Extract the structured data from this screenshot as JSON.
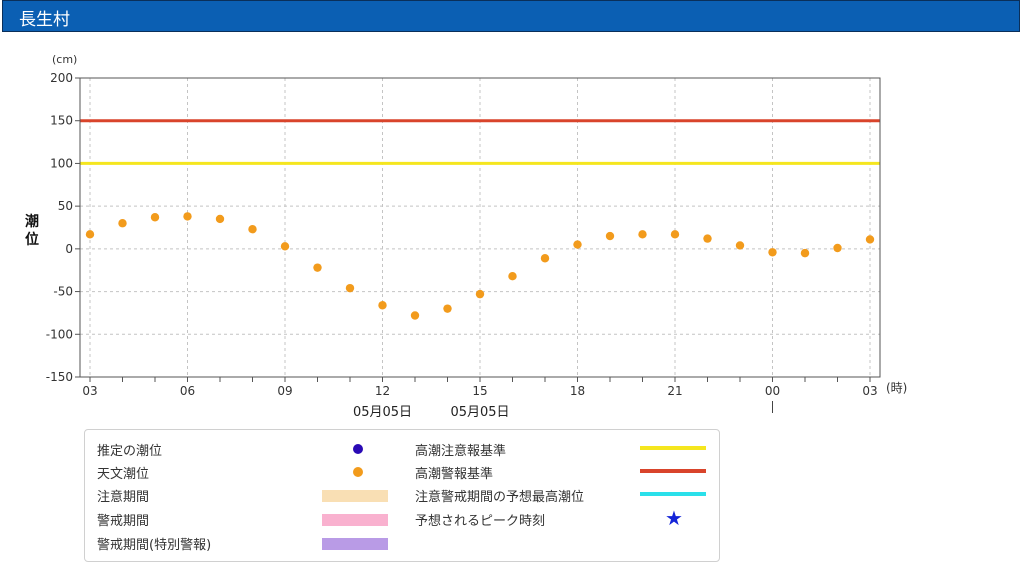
{
  "header": {
    "title": "長生村"
  },
  "chart_data": {
    "type": "scatter",
    "ylabel": "潮位",
    "yunit": "(cm)",
    "xunit": "(時)",
    "ylim": [
      -150,
      200
    ],
    "yticks": [
      200,
      150,
      100,
      50,
      0,
      -50,
      -100,
      -150
    ],
    "xticks": [
      {
        "i": 0,
        "label": "03"
      },
      {
        "i": 3,
        "label": "06"
      },
      {
        "i": 6,
        "label": "09"
      },
      {
        "i": 9,
        "label": "12"
      },
      {
        "i": 12,
        "label": "15"
      },
      {
        "i": 15,
        "label": "18"
      },
      {
        "i": 18,
        "label": "21"
      },
      {
        "i": 21,
        "label": "00"
      },
      {
        "i": 24,
        "label": "03"
      }
    ],
    "date_labels": [
      {
        "i": 9,
        "label": "05月05日"
      },
      {
        "i": 12,
        "label": "05月05日"
      }
    ],
    "day_marker_index": 21,
    "grid": true,
    "thresholds": [
      {
        "name": "高潮注意報基準",
        "value": 100,
        "color": "#f5e61e"
      },
      {
        "name": "高潮警報基準",
        "value": 150,
        "color": "#d9442b"
      }
    ],
    "series": [
      {
        "name": "天文潮位",
        "color": "#f29b1c",
        "values": [
          17,
          30,
          37,
          38,
          35,
          23,
          3,
          -22,
          -46,
          -66,
          -78,
          -70,
          -53,
          -32,
          -11,
          5,
          15,
          17,
          17,
          12,
          4,
          -4,
          -5,
          1,
          11
        ]
      }
    ]
  },
  "legend": {
    "items": [
      {
        "label": "推定の潮位",
        "symbol": "dot",
        "color": "#2a0ab5"
      },
      {
        "label": "天文潮位",
        "symbol": "dot",
        "color": "#f29b1c"
      },
      {
        "label": "注意期間",
        "symbol": "band",
        "color": "#f9dfb4"
      },
      {
        "label": "警戒期間",
        "symbol": "band",
        "color": "#f9b1cf"
      },
      {
        "label": "警戒期間(特別警報)",
        "symbol": "band",
        "color": "#b99be6"
      },
      {
        "label": "高潮注意報基準",
        "symbol": "line",
        "color": "#f5e61e"
      },
      {
        "label": "高潮警報基準",
        "symbol": "line",
        "color": "#d9442b"
      },
      {
        "label": "注意警戒期間の予想最高潮位",
        "symbol": "line",
        "color": "#2ae0ea"
      },
      {
        "label": "予想されるピーク時刻",
        "symbol": "star",
        "color": "#1424d8"
      }
    ]
  }
}
